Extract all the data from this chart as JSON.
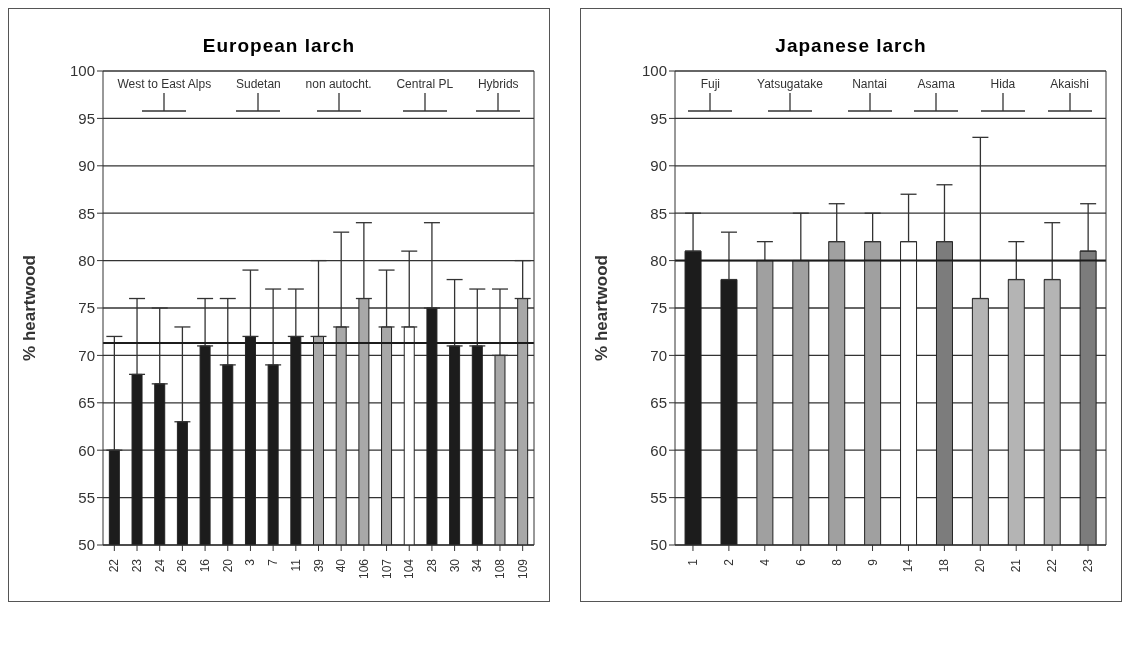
{
  "chart_data": [
    {
      "type": "bar",
      "title": "European larch",
      "ylabel": "% heartwood",
      "categories": [
        "22",
        "23",
        "24",
        "26",
        "16",
        "20",
        "3",
        "7",
        "11",
        "39",
        "40",
        "106",
        "107",
        "104",
        "28",
        "30",
        "34",
        "108",
        "109"
      ],
      "values": [
        60,
        68,
        67,
        63,
        71,
        69,
        72,
        69,
        72,
        72,
        73,
        76,
        73,
        73,
        75,
        71,
        71,
        70,
        76
      ],
      "errors": [
        [
          60,
          72
        ],
        [
          68,
          76
        ],
        [
          67,
          75
        ],
        [
          63,
          73
        ],
        [
          71,
          76
        ],
        [
          69,
          76
        ],
        [
          72,
          79
        ],
        [
          69,
          77
        ],
        [
          72,
          77
        ],
        [
          72,
          80
        ],
        [
          73,
          83
        ],
        [
          76,
          84
        ],
        [
          73,
          79
        ],
        [
          73,
          81
        ],
        [
          75,
          84
        ],
        [
          71,
          78
        ],
        [
          71,
          77
        ],
        [
          70,
          77
        ],
        [
          76,
          80
        ]
      ],
      "colors": [
        "#1c1c1c",
        "#1c1c1c",
        "#1c1c1c",
        "#1c1c1c",
        "#1c1c1c",
        "#1c1c1c",
        "#1c1c1c",
        "#1c1c1c",
        "#1c1c1c",
        "#a8a8a8",
        "#a8a8a8",
        "#a8a8a8",
        "#a8a8a8",
        "#ffffff",
        "#1c1c1c",
        "#1c1c1c",
        "#1c1c1c",
        "#a8a8a8",
        "#a8a8a8"
      ],
      "ylim": [
        50,
        100
      ],
      "yticks": [
        50,
        55,
        60,
        65,
        70,
        75,
        80,
        85,
        90,
        95,
        100
      ],
      "grid": "y",
      "ref_lines": [
        {
          "axis": "y",
          "value": 71.3,
          "color": "#1c1c1c"
        }
      ],
      "annotations": [
        "West to East Alps",
        "Sudetan",
        "non autocht.",
        "Central PL",
        "Hybrids"
      ]
    },
    {
      "type": "bar",
      "title": "Japanese larch",
      "ylabel": "% heartwood",
      "categories": [
        "1",
        "2",
        "4",
        "6",
        "8",
        "9",
        "14",
        "18",
        "20",
        "21",
        "22",
        "23"
      ],
      "values": [
        81,
        78,
        80,
        80,
        82,
        82,
        82,
        82,
        76,
        78,
        78,
        81
      ],
      "errors": [
        [
          81,
          85
        ],
        [
          78,
          83
        ],
        [
          80,
          82
        ],
        [
          80,
          85
        ],
        [
          82,
          86
        ],
        [
          82,
          85
        ],
        [
          82,
          87
        ],
        [
          82,
          88
        ],
        [
          76,
          93
        ],
        [
          78,
          82
        ],
        [
          78,
          84
        ],
        [
          81,
          86
        ]
      ],
      "colors": [
        "#1c1c1c",
        "#1c1c1c",
        "#a0a0a0",
        "#a0a0a0",
        "#a0a0a0",
        "#a0a0a0",
        "#ffffff",
        "#7c7c7c",
        "#b4b4b4",
        "#b4b4b4",
        "#b4b4b4",
        "#7c7c7c"
      ],
      "ylim": [
        50,
        100
      ],
      "yticks": [
        50,
        55,
        60,
        65,
        70,
        75,
        80,
        85,
        90,
        95,
        100
      ],
      "grid": "y",
      "ref_lines": [
        {
          "axis": "y",
          "value": 80,
          "color": "#1c1c1c"
        }
      ],
      "annotations": [
        "Fuji",
        "Yatsugatake",
        "Nantai",
        "Asama",
        "Hida",
        "Akaishi"
      ]
    }
  ]
}
